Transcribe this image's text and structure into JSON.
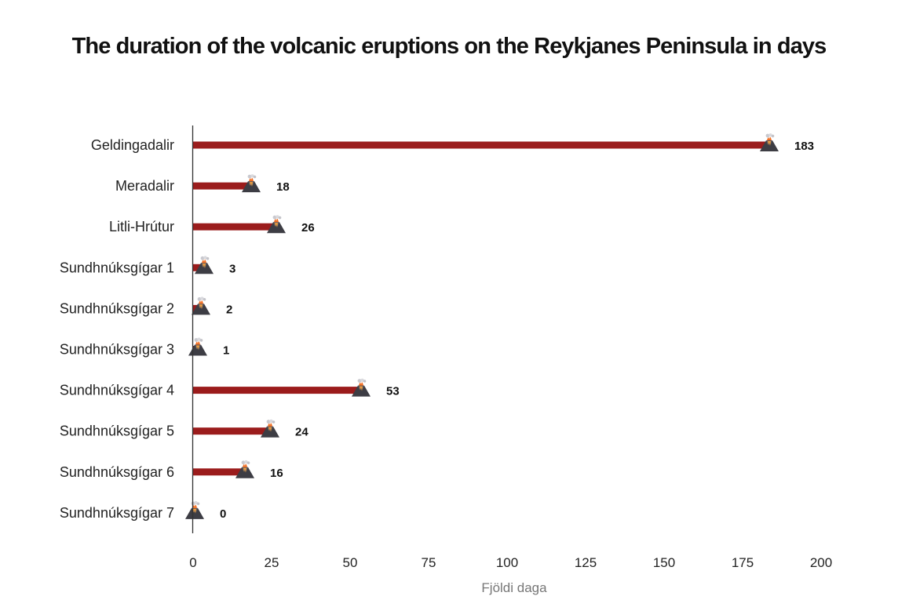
{
  "chart_data": {
    "type": "bar",
    "orientation": "horizontal",
    "title": "The duration of the volcanic eruptions on the Reykjanes Peninsula in days",
    "xlabel": "Fjöldi daga",
    "ylabel": "",
    "categories": [
      "Geldingadalir",
      "Meradalir",
      "Litli-Hrútur",
      "Sundhnúksgígar 1",
      "Sundhnúksgígar 2",
      "Sundhnúksgígar 3",
      "Sundhnúksgígar 4",
      "Sundhnúksgígar 5",
      "Sundhnúksgígar 6",
      "Sundhnúksgígar 7"
    ],
    "values": [
      183,
      18,
      26,
      3,
      2,
      1,
      53,
      24,
      16,
      0
    ],
    "xlim": [
      0,
      200
    ],
    "xticks": [
      0,
      25,
      50,
      75,
      100,
      125,
      150,
      175,
      200
    ],
    "grid": false,
    "legend": "none",
    "marker_icon": "volcano-icon",
    "colors": {
      "bar": "#9b1c1c",
      "axis": "#333333"
    }
  }
}
